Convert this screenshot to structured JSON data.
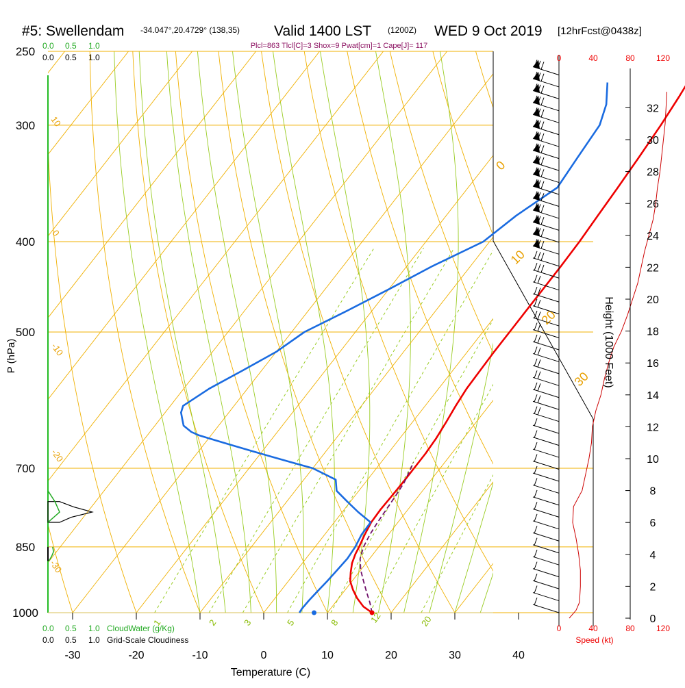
{
  "header": {
    "station": "#5: Swellendam",
    "coords": "-34.047°,20.4729° (138,35)",
    "valid": "Valid 1400 LST",
    "utc": "(1200Z)",
    "date": "WED 9 Oct 2019",
    "forecast": "[12hrFcst@0438z]",
    "indices": "Plcl=863 Tlcl[C]=3 Shox=9 Pwat[cm]=1 Cape[J]= 117"
  },
  "cloud_scales": {
    "green_top": [
      "0.0",
      "0.5",
      "1.0"
    ],
    "black_top": [
      "0.0",
      "0.5",
      "1.0"
    ],
    "green_bottom": [
      "0.0",
      "0.5",
      "1.0"
    ],
    "cloudwater_label": "CloudWater (g/Kg)",
    "black_bottom": [
      "0.0",
      "0.5",
      "1.0"
    ],
    "cloudiness_label": "Grid-Scale Cloudiness"
  },
  "speed_axis": {
    "ticks": [
      "0",
      "40",
      "80",
      "120"
    ],
    "label": "Speed (kt)"
  },
  "height_axis": {
    "label": "Height (1000 Feet)",
    "ticks": [
      0,
      2,
      4,
      6,
      8,
      10,
      12,
      14,
      16,
      18,
      20,
      22,
      24,
      26,
      28,
      30,
      32
    ]
  },
  "chart_data": {
    "type": "line",
    "xlabel": "Temperature (C)",
    "ylabel": "P (hPa)",
    "x_ticks": [
      -30,
      -20,
      -10,
      0,
      10,
      20,
      30,
      40
    ],
    "pressure_ticks": [
      250,
      300,
      400,
      500,
      700,
      850,
      1000
    ],
    "xlim": [
      -34,
      48
    ],
    "ylim_hPa": [
      1000,
      250
    ],
    "isotherm_labels": [
      "-10",
      "0",
      "10",
      "20",
      "30",
      "40"
    ],
    "mixing_ratio_labels": [
      "1",
      "2",
      "3",
      "5",
      "8",
      "12",
      "20"
    ],
    "dry_adiabat_labels": [
      "10",
      "0",
      "-10",
      "-20",
      "-30",
      "0",
      "10",
      "20",
      "30"
    ],
    "series": [
      {
        "color": "#ee0000",
        "pressure": [
          1000,
          985,
          965,
          945,
          925,
          905,
          885,
          865,
          850,
          825,
          800,
          775,
          750,
          720,
          700,
          675,
          650,
          625,
          600,
          575,
          550,
          525,
          500,
          475,
          450,
          425,
          400,
          375,
          350,
          325,
          300,
          280,
          265
        ],
        "value": [
          17.0,
          14.9,
          12.9,
          11.2,
          9.7,
          8.7,
          7.8,
          7.2,
          6.9,
          6.3,
          5.8,
          5.7,
          5.8,
          5.9,
          5.9,
          5.9,
          5.7,
          5.3,
          4.8,
          4.4,
          4.3,
          4.2,
          4.2,
          4.2,
          4.2,
          4.2,
          4.1,
          3.8,
          3.5,
          3.1,
          2.6,
          2.0,
          1.4
        ]
      },
      {
        "color": "#1a6be0",
        "pressure": [
          1000,
          990,
          970,
          950,
          925,
          900,
          875,
          850,
          825,
          800,
          780,
          760,
          740,
          720,
          700,
          690,
          680,
          670,
          660,
          650,
          645,
          640,
          635,
          630,
          620,
          610,
          600,
          575,
          550,
          525,
          500,
          475,
          450,
          425,
          400,
          375,
          350,
          325,
          300,
          285,
          270
        ],
        "value": [
          5.6,
          5.5,
          5.6,
          5.8,
          6.1,
          6.3,
          6.5,
          6.3,
          5.8,
          5.7,
          2.5,
          -0.5,
          -3.5,
          -5.0,
          -10.0,
          -14.0,
          -18.0,
          -22.0,
          -26.0,
          -30.0,
          -32.0,
          -33.5,
          -34.5,
          -35.5,
          -36.5,
          -37.5,
          -38.0,
          -36.0,
          -33.0,
          -30.0,
          -28.0,
          -24.0,
          -20.0,
          -16.0,
          -11.0,
          -9.0,
          -6.0,
          -6.5,
          -7.0,
          -8.5,
          -11.0
        ]
      },
      {
        "color": "#70106a",
        "dashed": true,
        "pressure": [
          1000,
          975,
          950,
          925,
          900,
          875,
          850,
          825,
          800,
          775,
          750,
          725,
          700,
          690
        ],
        "value": [
          17.0,
          15.4,
          13.6,
          11.8,
          10.0,
          8.5,
          7.6,
          7.1,
          6.8,
          6.6,
          6.4,
          6.1,
          5.4,
          5.1
        ]
      },
      {
        "color": "#1a6be0",
        "marker": true,
        "pressure": [
          1000
        ],
        "value": [
          7.9
        ]
      },
      {
        "color": "#ee0000",
        "marker": true,
        "pressure": [
          1000
        ],
        "value": [
          17.0
        ]
      }
    ],
    "wind_speed_kt": {
      "color": "#cc0000",
      "height_kft": [
        0,
        0.5,
        1,
        2,
        3,
        4,
        5,
        6,
        7,
        8,
        9,
        10,
        11,
        12,
        13,
        14,
        15,
        16,
        17,
        18,
        19,
        20,
        21,
        22,
        23,
        24,
        25,
        26,
        27,
        28,
        29,
        30,
        31,
        32,
        33
      ],
      "speed": [
        12,
        20,
        24,
        25,
        25,
        23,
        20,
        16,
        17,
        27,
        31,
        35,
        38,
        39,
        43,
        49,
        53,
        58,
        64,
        73,
        80,
        86,
        92,
        96,
        100,
        105,
        110,
        113,
        115,
        118,
        120,
        122,
        124,
        125,
        126
      ]
    },
    "cloudiness_pressure": [
      760,
      770,
      780,
      790,
      800
    ],
    "cloudiness_value": [
      0.25,
      0.55,
      0.95,
      0.5,
      0.25
    ],
    "cloudwater_pressure": [
      850,
      860,
      870,
      880
    ],
    "cloudwater_value": [
      0.1,
      0.12,
      0.08,
      0.02
    ]
  }
}
